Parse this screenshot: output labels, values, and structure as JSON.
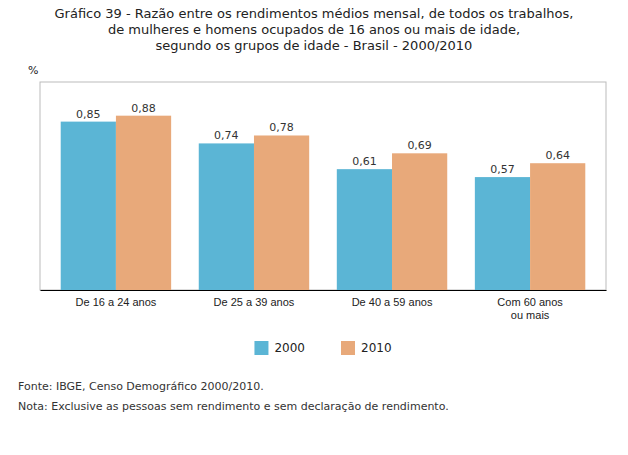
{
  "chart_data": {
    "type": "bar",
    "title": "Gráfico 39 - Razão entre os rendimentos médios mensal, de todos os trabalhos,\nde mulheres e homens ocupados de 16 anos ou mais de idade,\nsegundo os grupos de idade - Brasil - 2000/2010",
    "y_label": "%",
    "categories": [
      "De 16 a 24 anos",
      "De 25 a 39 anos",
      "De 40 a 59 anos",
      "Com 60 anos\nou mais"
    ],
    "series": [
      {
        "name": "2000",
        "color": "#5BB5D5",
        "values": [
          0.85,
          0.74,
          0.61,
          0.57
        ],
        "value_labels": [
          "0,85",
          "0,74",
          "0,61",
          "0,57"
        ]
      },
      {
        "name": "2010",
        "color": "#E8A97A",
        "values": [
          0.88,
          0.78,
          0.69,
          0.64
        ],
        "value_labels": [
          "0,88",
          "0,78",
          "0,69",
          "0,64"
        ]
      }
    ],
    "ylim": [
      0,
      1.05
    ],
    "yticks": [],
    "tick_labels": "x",
    "data_labels": true,
    "legend": "bottom",
    "grid": false,
    "annotations": [
      "Fonte: IBGE, Censo Demográfico 2000/2010.",
      "Nota: Exclusive as pessoas sem rendimento e sem declaração de rendimento."
    ]
  }
}
